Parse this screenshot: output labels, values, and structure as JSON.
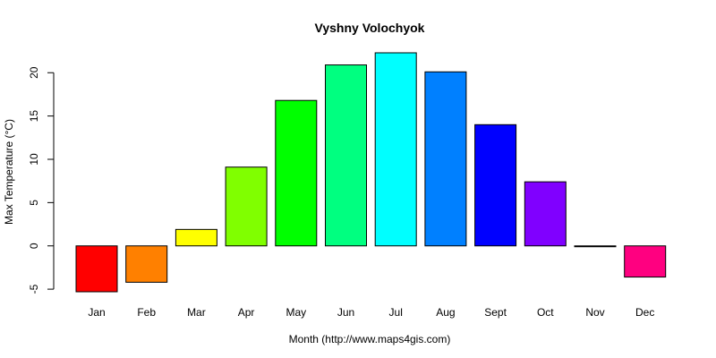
{
  "chart_data": {
    "type": "bar",
    "title": "Vyshny Volochyok",
    "xlabel": "Month (http://www.maps4gis.com)",
    "ylabel": "Max Temperature (°C)",
    "categories": [
      "Jan",
      "Feb",
      "Mar",
      "Apr",
      "May",
      "Jun",
      "Jul",
      "Aug",
      "Sept",
      "Oct",
      "Nov",
      "Dec"
    ],
    "values": [
      -5.3,
      -4.2,
      1.9,
      9.1,
      16.8,
      20.9,
      22.3,
      20.1,
      14.0,
      7.4,
      -0.1,
      -3.6
    ],
    "colors": [
      "#FF0000",
      "#FF8000",
      "#FFFF00",
      "#80FF00",
      "#00FF00",
      "#00FF80",
      "#00FFFF",
      "#0080FF",
      "#0000FF",
      "#8000FF",
      "#FF00FF",
      "#FF0080"
    ],
    "yticks": [
      -5,
      0,
      5,
      10,
      15,
      20
    ],
    "ylim": [
      -5.3,
      22.3
    ],
    "grid": false,
    "legend": "none"
  }
}
